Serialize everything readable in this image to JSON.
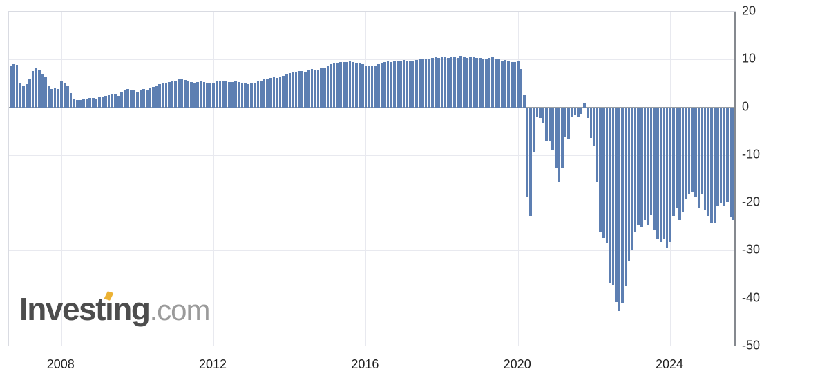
{
  "logo": {
    "word_start": "Invest",
    "dotless_i": "ı",
    "word_end": "ng",
    "suffix": ".com",
    "accent_color": "#ecb234",
    "text_color": "#4d4d4d",
    "suffix_color": "#9b9b9b"
  },
  "chart_data": {
    "type": "bar",
    "title": "",
    "xlabel": "",
    "ylabel": "",
    "bar_color": "#5d7fb2",
    "zero_line_color": "#9aa0a6",
    "axis_color": "#85898f",
    "grid_color": "#e8e9ef",
    "grid": true,
    "legend": "none",
    "ylim": [
      -50,
      20
    ],
    "y_ticks": [
      20,
      10,
      0,
      -10,
      -20,
      -30,
      -40,
      -50
    ],
    "x_tick_years": [
      2008,
      2012,
      2016,
      2020,
      2024
    ],
    "x_start": "2006-09",
    "x_freq": "monthly",
    "series": [
      {
        "name": "monthly-values",
        "values": [
          8.8,
          9.0,
          8.9,
          5.1,
          4.5,
          4.9,
          5.9,
          7.6,
          8.2,
          7.9,
          7.0,
          6.3,
          4.6,
          3.9,
          4.0,
          3.9,
          5.6,
          5.0,
          4.4,
          3.0,
          1.8,
          1.5,
          1.5,
          1.6,
          1.8,
          1.9,
          2.0,
          1.8,
          2.1,
          2.2,
          2.4,
          2.5,
          2.7,
          2.8,
          2.4,
          3.2,
          3.6,
          3.9,
          3.6,
          3.5,
          3.3,
          3.6,
          3.8,
          3.7,
          4.0,
          4.2,
          4.6,
          4.9,
          5.2,
          5.1,
          5.3,
          5.5,
          5.6,
          5.8,
          5.9,
          5.7,
          5.5,
          5.3,
          5.1,
          5.3,
          5.5,
          5.3,
          5.1,
          5.0,
          5.2,
          5.4,
          5.6,
          5.4,
          5.5,
          5.3,
          5.3,
          5.4,
          5.3,
          5.0,
          5.0,
          4.9,
          5.0,
          5.2,
          5.4,
          5.5,
          5.8,
          6.0,
          6.2,
          6.3,
          6.2,
          6.4,
          6.6,
          6.8,
          7.2,
          7.5,
          7.3,
          7.6,
          7.6,
          7.4,
          7.8,
          8.0,
          7.9,
          7.8,
          8.1,
          8.3,
          8.6,
          9.0,
          9.3,
          9.2,
          9.4,
          9.5,
          9.5,
          9.7,
          9.5,
          9.3,
          9.2,
          9.0,
          8.8,
          8.7,
          8.6,
          8.8,
          9.0,
          9.3,
          9.5,
          9.7,
          9.5,
          9.6,
          9.8,
          9.7,
          9.9,
          9.7,
          9.6,
          9.8,
          9.9,
          10.0,
          10.2,
          10.1,
          10.0,
          10.3,
          10.5,
          10.4,
          10.6,
          10.5,
          10.3,
          10.6,
          10.5,
          10.4,
          10.7,
          10.5,
          10.4,
          10.6,
          10.5,
          10.3,
          10.4,
          10.2,
          10.1,
          10.3,
          10.5,
          10.2,
          10.0,
          9.8,
          9.9,
          9.7,
          9.5,
          9.4,
          9.6,
          8.0,
          2.5,
          -18.8,
          -22.7,
          -9.4,
          -1.9,
          -2.2,
          -3.3,
          -7.2,
          -7.0,
          -9.0,
          -12.8,
          -15.7,
          -12.8,
          -6.3,
          -6.7,
          -2.1,
          -1.6,
          -1.9,
          -1.5,
          1.0,
          -2.3,
          -6.4,
          -8.1,
          -15.7,
          -26.1,
          -27.3,
          -28.5,
          -36.7,
          -37.1,
          -40.8,
          -42.7,
          -41.0,
          -37.3,
          -32.3,
          -29.9,
          -26.0,
          -24.6,
          -25.1,
          -23.6,
          -24.6,
          -22.6,
          -25.8,
          -27.7,
          -28.2,
          -27.7,
          -29.5,
          -28.2,
          -22.7,
          -21.2,
          -23.6,
          -22.0,
          -19.3,
          -18.3,
          -17.8,
          -18.8,
          -21.0,
          -18.3,
          -21.4,
          -22.7,
          -24.3,
          -24.1,
          -20.5,
          -20.0,
          -20.7,
          -19.8,
          -22.9,
          -23.6
        ]
      }
    ]
  }
}
